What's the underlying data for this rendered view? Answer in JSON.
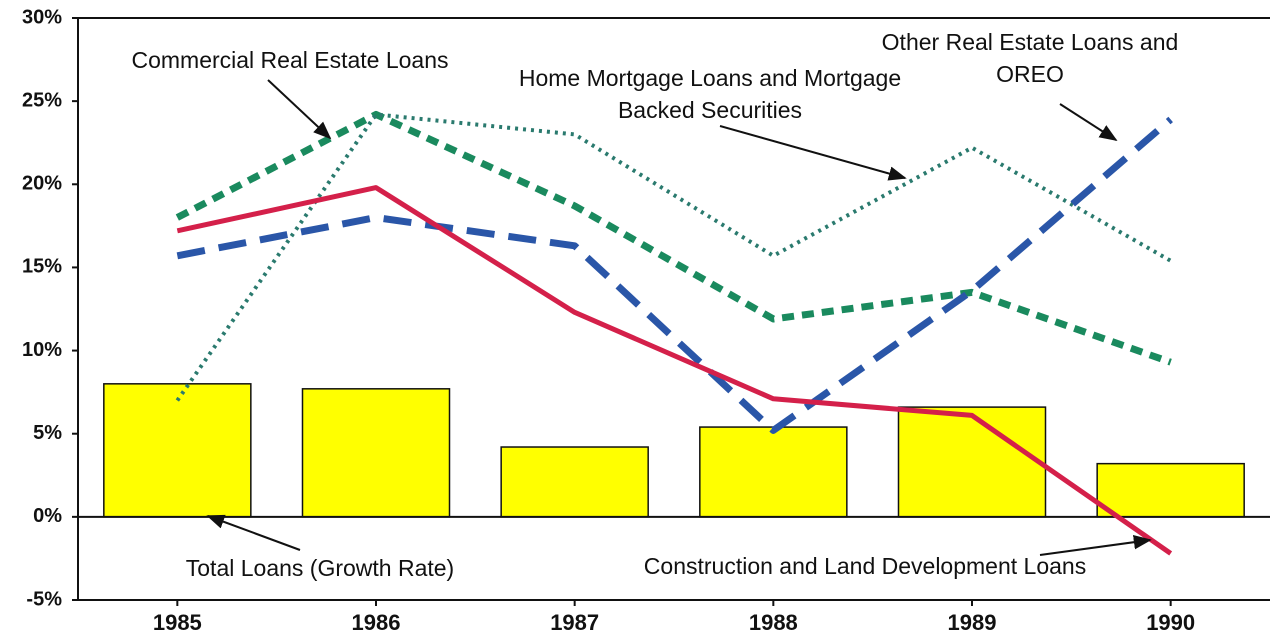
{
  "chart_data": {
    "type": "combo",
    "categories": [
      "1985",
      "1986",
      "1987",
      "1988",
      "1989",
      "1990"
    ],
    "ylim": [
      -5,
      30
    ],
    "yticks": [
      {
        "value": -5,
        "label": "-5%"
      },
      {
        "value": 0,
        "label": "0%"
      },
      {
        "value": 5,
        "label": "5%"
      },
      {
        "value": 10,
        "label": "10%"
      },
      {
        "value": 15,
        "label": "15%"
      },
      {
        "value": 20,
        "label": "20%"
      },
      {
        "value": 25,
        "label": "25%"
      },
      {
        "value": 30,
        "label": "30%"
      }
    ],
    "series": [
      {
        "name": "Total Loans (Growth Rate)",
        "type": "bar",
        "color": "#ffff00",
        "values": [
          8.0,
          7.7,
          4.2,
          5.4,
          6.6,
          3.2
        ]
      },
      {
        "name": "Commercial Real Estate Loans",
        "type": "line",
        "style": "dashed",
        "color": "#1a8a5e",
        "values": [
          18.0,
          24.2,
          18.7,
          11.9,
          13.5,
          9.3
        ]
      },
      {
        "name": "Home Mortgage Loans and Mortgage Backed Securities",
        "type": "line",
        "style": "dotted",
        "color": "#2a7a6e",
        "values": [
          7.0,
          24.2,
          23.0,
          15.7,
          22.2,
          15.4
        ]
      },
      {
        "name": "Other Real Estate Loans and OREO",
        "type": "line",
        "style": "longdash",
        "color": "#2a56a8",
        "values": [
          15.7,
          18.0,
          16.3,
          5.2,
          13.6,
          23.9
        ]
      },
      {
        "name": "Construction and Land Development Loans",
        "type": "line",
        "style": "solid",
        "color": "#d4204a",
        "values": [
          17.2,
          19.8,
          12.3,
          7.1,
          6.1,
          -2.2
        ]
      }
    ]
  }
}
